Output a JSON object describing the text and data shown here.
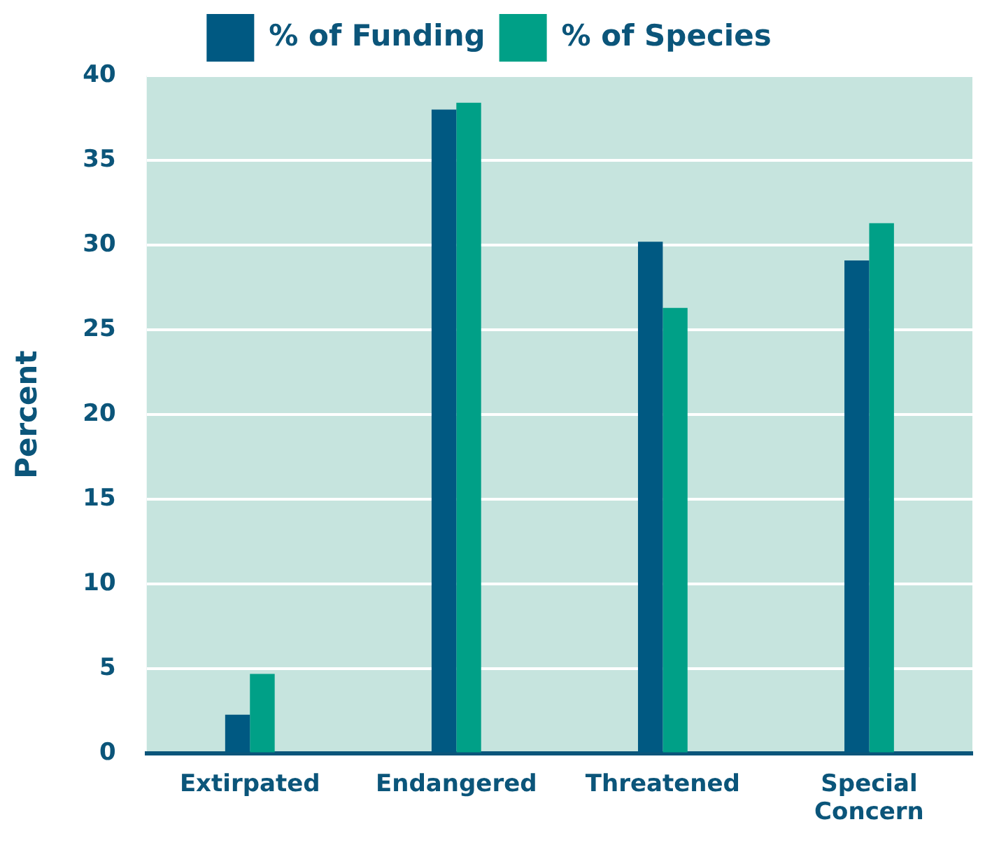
{
  "chart_data": {
    "type": "bar",
    "ylabel": "Percent",
    "categories": [
      "Extirpated",
      "Endangered",
      "Threatened",
      "Special Concern"
    ],
    "series": [
      {
        "name": "% of Funding",
        "color": "#005982",
        "values": [
          2.3,
          38.0,
          30.2,
          29.1
        ]
      },
      {
        "name": "% of Species",
        "color": "#00a087",
        "values": [
          4.7,
          38.4,
          26.3,
          31.3
        ]
      }
    ],
    "ylim": [
      0,
      40
    ],
    "yticks": [
      0,
      5,
      10,
      15,
      20,
      25,
      30,
      35,
      40
    ],
    "grid": "y",
    "legend": "top"
  }
}
